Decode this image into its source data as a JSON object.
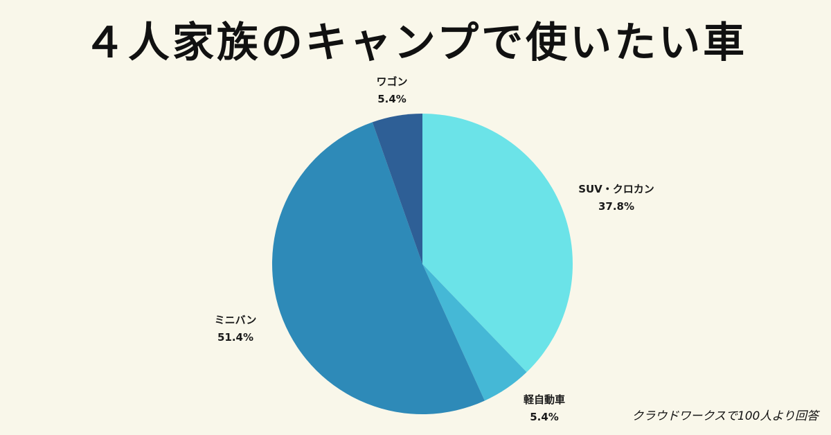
{
  "chart_data": {
    "type": "pie",
    "title": "４人家族のキャンプで使いたい車",
    "slices": [
      {
        "label": "SUV・クロカン",
        "value": 37.8,
        "value_label": "37.8%",
        "color": "#6be3e8"
      },
      {
        "label": "軽自動車",
        "value": 5.4,
        "value_label": "5.4%",
        "color": "#45b8d6"
      },
      {
        "label": "ミニバン",
        "value": 51.4,
        "value_label": "51.4%",
        "color": "#2e8ab8"
      },
      {
        "label": "ワゴン",
        "value": 5.4,
        "value_label": "5.4%",
        "color": "#2e5f96"
      }
    ],
    "start": "12 o'clock",
    "direction": "clockwise"
  },
  "footer": {
    "source": "クラウドワークスで100人より回答"
  }
}
